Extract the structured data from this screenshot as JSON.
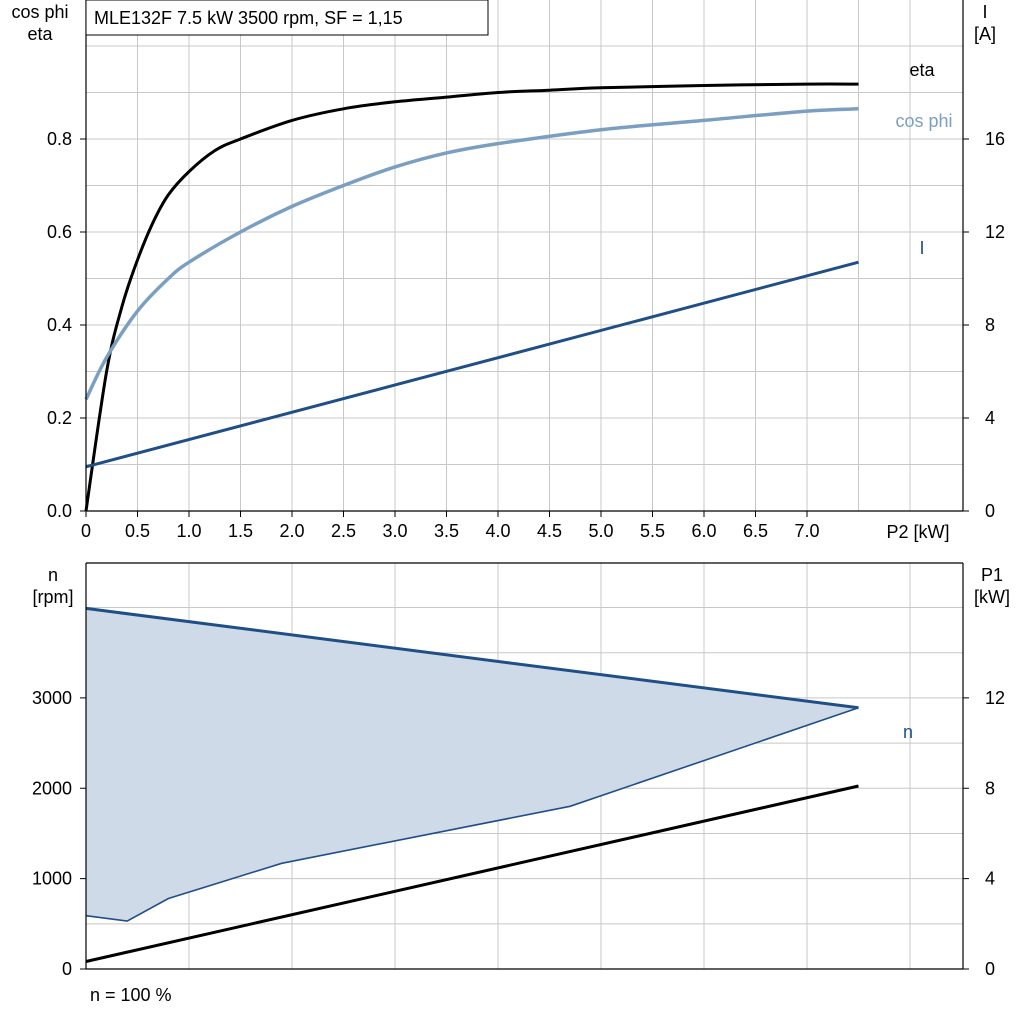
{
  "chart_title": "MLE132F   7.5 kW   3500 rpm, SF = 1,15",
  "footer_note": "n = 100 %",
  "colors": {
    "eta": "#000000",
    "cos_phi": "#7a9fc0",
    "current": "#1f4f86",
    "speed_line": "#1f4f86",
    "speed_band_fill": "#cfdae8",
    "p1": "#000000",
    "grid": "#c8c8c8"
  },
  "chart_data": [
    {
      "type": "line",
      "title": "MLE132F   7.5 kW   3500 rpm, SF = 1,15",
      "xlabel": "P2 [kW]",
      "x_ticks": [
        "0",
        "0.5",
        "1.0",
        "1.5",
        "2.0",
        "2.5",
        "3.0",
        "3.5",
        "4.0",
        "4.5",
        "5.0",
        "5.5",
        "6.0",
        "6.5",
        "7.0"
      ],
      "xlim": [
        0,
        8
      ],
      "y_left_label_lines": [
        "cos phi",
        "eta"
      ],
      "y_left_ticks": [
        "0.0",
        "0.2",
        "0.4",
        "0.6",
        "0.8"
      ],
      "ylim_left": [
        0,
        1.0
      ],
      "y_right_label_lines": [
        "I",
        "[A]"
      ],
      "y_right_ticks": [
        "0",
        "4",
        "8",
        "12",
        "16"
      ],
      "ylim_right": [
        0,
        20
      ],
      "grid": true,
      "series": [
        {
          "name": "eta",
          "axis": "left",
          "x": [
            0,
            0.2,
            0.35,
            0.5,
            0.65,
            0.8,
            1.0,
            1.25,
            1.5,
            2.0,
            2.5,
            3.0,
            3.5,
            4.0,
            4.5,
            5.0,
            6.0,
            7.0,
            7.5
          ],
          "y": [
            0.0,
            0.3,
            0.44,
            0.54,
            0.62,
            0.68,
            0.73,
            0.775,
            0.8,
            0.84,
            0.865,
            0.88,
            0.89,
            0.9,
            0.905,
            0.91,
            0.915,
            0.918,
            0.918
          ]
        },
        {
          "name": "cos phi",
          "axis": "left",
          "x": [
            0,
            0.2,
            0.5,
            0.8,
            1.0,
            1.5,
            2.0,
            2.5,
            3.0,
            3.5,
            4.0,
            5.0,
            6.0,
            7.0,
            7.5
          ],
          "y": [
            0.24,
            0.33,
            0.43,
            0.5,
            0.535,
            0.6,
            0.655,
            0.7,
            0.74,
            0.77,
            0.79,
            0.82,
            0.84,
            0.86,
            0.865
          ]
        },
        {
          "name": "I",
          "axis": "right",
          "x": [
            0,
            7.5
          ],
          "y": [
            1.9,
            10.7
          ]
        }
      ]
    },
    {
      "type": "line",
      "xlim": [
        0,
        8
      ],
      "y_left_label_lines": [
        "n",
        "[rpm]"
      ],
      "y_left_ticks": [
        "0",
        "1000",
        "2000",
        "3000"
      ],
      "ylim_left": [
        0,
        4000
      ],
      "y_right_label_lines": [
        "P1",
        "[kW]"
      ],
      "y_right_ticks": [
        "0",
        "4",
        "8",
        "12"
      ],
      "ylim_right": [
        0,
        16
      ],
      "grid": true,
      "speed_band": {
        "upper": {
          "x": [
            0,
            7.5
          ],
          "y": [
            3990,
            2890
          ]
        },
        "lower": {
          "x": [
            0,
            0.4,
            0.8,
            1.9,
            4.7,
            7.5
          ],
          "y": [
            590,
            530,
            780,
            1170,
            1800,
            2890
          ]
        }
      },
      "series": [
        {
          "name": "n",
          "axis": "left",
          "x": [
            0,
            7.5
          ],
          "y": [
            3990,
            2890
          ]
        },
        {
          "name": "P1",
          "axis": "right",
          "x": [
            0,
            7.5
          ],
          "y": [
            0.33,
            8.1
          ]
        }
      ]
    }
  ]
}
